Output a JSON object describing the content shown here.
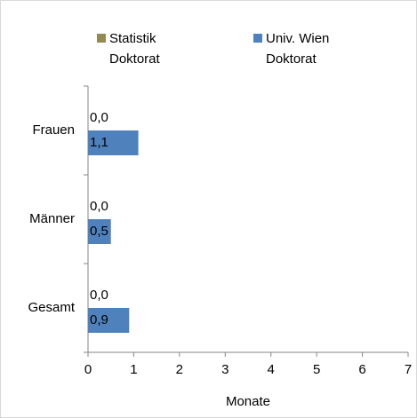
{
  "chart_data": {
    "type": "hbar",
    "categories": [
      "Frauen",
      "Männer",
      "Gesamt"
    ],
    "series": [
      {
        "name": "Statistik Doktorat",
        "color": "#948a54",
        "values": [
          0.0,
          0.0,
          0.0
        ],
        "value_labels": [
          "0,0",
          "0,0",
          "0,0"
        ]
      },
      {
        "name": "Univ. Wien Doktorat",
        "color": "#4f81bd",
        "values": [
          1.1,
          0.5,
          0.9
        ],
        "value_labels": [
          "1,1",
          "0,5",
          "0,9"
        ]
      }
    ],
    "xlim": [
      0,
      7
    ],
    "xticks": [
      0,
      1,
      2,
      3,
      4,
      5,
      6,
      7
    ],
    "x_label": "Monate",
    "legend": "top",
    "grid": false
  }
}
